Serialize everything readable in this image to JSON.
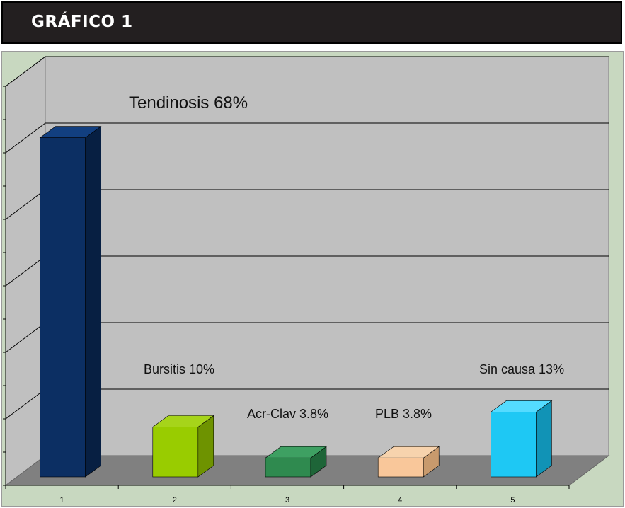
{
  "header": {
    "title": "GRÁFICO 1"
  },
  "chart_data": {
    "type": "bar",
    "categories": [
      "1",
      "2",
      "3",
      "4",
      "5"
    ],
    "values": [
      68,
      10,
      3.8,
      3.8,
      13
    ],
    "data_labels": [
      "Tendinosis 68%",
      "Bursitis 10%",
      "Acr-Clav 3.8%",
      "PLB 3.8%",
      "Sin causa 13%"
    ],
    "ylim": [
      0,
      80
    ],
    "grid": true,
    "legend": "none",
    "colors": {
      "bars": [
        "#0c2f63",
        "#99cc00",
        "#2f8a4f",
        "#f9c79a",
        "#1ec8f4"
      ],
      "bar_tops": [
        "#123f80",
        "#a6d41a",
        "#3ea062",
        "#f7d3ad",
        "#54dbff"
      ],
      "bar_sides": [
        "#071f42",
        "#6e9300",
        "#1e6538",
        "#c89a6d",
        "#1193b6"
      ],
      "wall": "#c0c0c0",
      "floor": "#808080",
      "background": "#c8d8c0"
    }
  }
}
